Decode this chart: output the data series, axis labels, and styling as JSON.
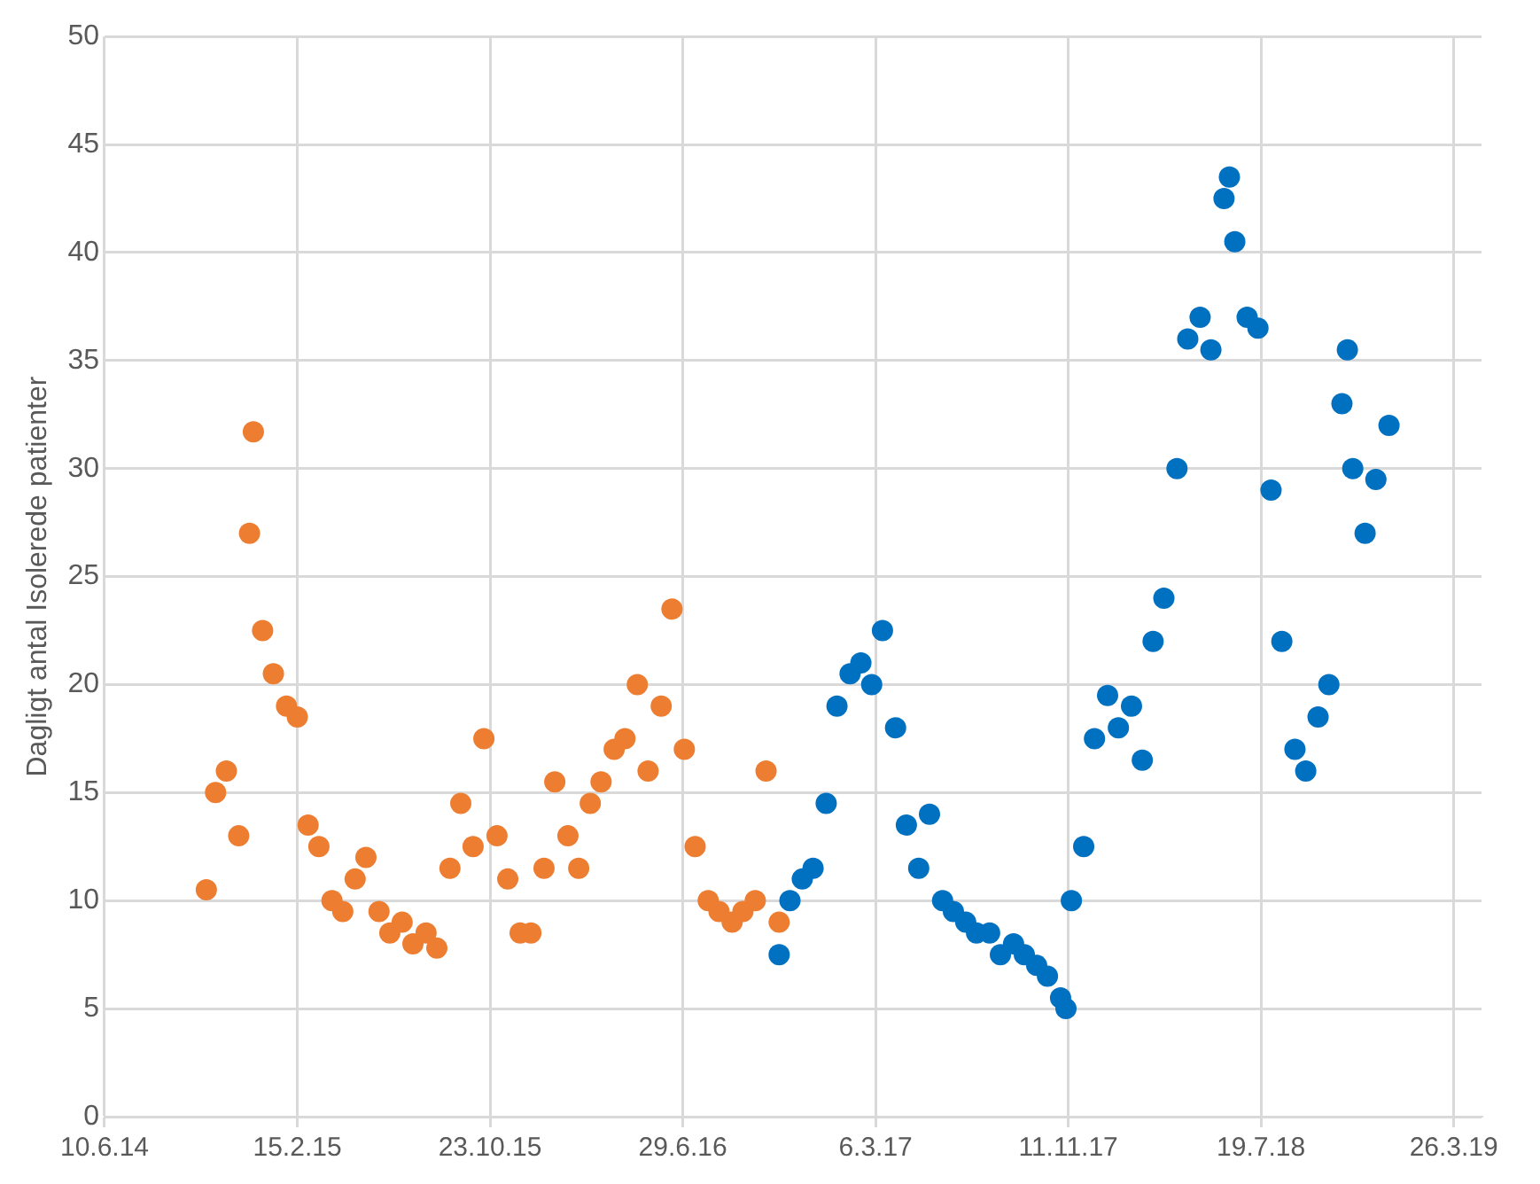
{
  "chart_data": {
    "type": "scatter",
    "ylabel": "Dagligt antal Isolerede patienter",
    "xlim": [
      "2014-06-10",
      "2019-05-01"
    ],
    "xticks": [
      {
        "value": "2014-06-10",
        "label": "10.6.14"
      },
      {
        "value": "2015-02-15",
        "label": "15.2.15"
      },
      {
        "value": "2015-10-23",
        "label": "23.10.15"
      },
      {
        "value": "2016-06-29",
        "label": "29.6.16"
      },
      {
        "value": "2017-03-06",
        "label": "6.3.17"
      },
      {
        "value": "2017-11-11",
        "label": "11.11.17"
      },
      {
        "value": "2018-07-19",
        "label": "19.7.18"
      },
      {
        "value": "2019-03-26",
        "label": "26.3.19"
      }
    ],
    "ylim": [
      0,
      50
    ],
    "yticks": [
      0,
      5,
      10,
      15,
      20,
      25,
      30,
      35,
      40,
      45,
      50
    ],
    "grid": true,
    "legend": false,
    "marker": "circle",
    "series": [
      {
        "color": "#ed7d31",
        "x": [
          "2014-10-20",
          "2014-11-01",
          "2014-11-15",
          "2014-12-01",
          "2014-12-15",
          "2014-12-20",
          "2015-01-01",
          "2015-01-15",
          "2015-02-01",
          "2015-02-15",
          "2015-03-01",
          "2015-03-15",
          "2015-04-01",
          "2015-04-15",
          "2015-05-01",
          "2015-05-15",
          "2015-06-01",
          "2015-06-15",
          "2015-07-01",
          "2015-07-15",
          "2015-08-01",
          "2015-08-15",
          "2015-09-01",
          "2015-09-15",
          "2015-10-01",
          "2015-10-15",
          "2015-11-01",
          "2015-11-15",
          "2015-12-01",
          "2015-12-15",
          "2016-01-01",
          "2016-01-15",
          "2016-02-01",
          "2016-02-15",
          "2016-03-01",
          "2016-03-15",
          "2016-04-01",
          "2016-04-15",
          "2016-05-01",
          "2016-05-15",
          "2016-06-01",
          "2016-06-15",
          "2016-07-01",
          "2016-07-15",
          "2016-08-01",
          "2016-08-15",
          "2016-09-01",
          "2016-09-15",
          "2016-10-01",
          "2016-10-15",
          "2016-11-01"
        ],
        "values": [
          10.5,
          15,
          16,
          13,
          27,
          31.7,
          22.5,
          20.5,
          19,
          18.5,
          13.5,
          12.5,
          10,
          9.5,
          11,
          12,
          9.5,
          8.5,
          9,
          8,
          8.5,
          7.8,
          11.5,
          14.5,
          12.5,
          17.5,
          13,
          11,
          8.5,
          8.5,
          11.5,
          15.5,
          13,
          11.5,
          14.5,
          15.5,
          17,
          17.5,
          20,
          16,
          19,
          23.5,
          17,
          12.5,
          10,
          9.5,
          9,
          9.5,
          10,
          16,
          9
        ]
      },
      {
        "color": "#0070c0",
        "x": [
          "2016-11-01",
          "2016-11-15",
          "2016-12-01",
          "2016-12-15",
          "2017-01-01",
          "2017-01-15",
          "2017-02-01",
          "2017-02-15",
          "2017-03-01",
          "2017-03-15",
          "2017-04-01",
          "2017-04-15",
          "2017-05-01",
          "2017-05-15",
          "2017-06-01",
          "2017-06-15",
          "2017-07-01",
          "2017-07-15",
          "2017-08-01",
          "2017-08-15",
          "2017-09-01",
          "2017-09-15",
          "2017-10-01",
          "2017-10-15",
          "2017-11-01",
          "2017-11-08",
          "2017-11-15",
          "2017-12-01",
          "2017-12-15",
          "2018-01-01",
          "2018-01-15",
          "2018-02-01",
          "2018-02-15",
          "2018-03-01",
          "2018-03-15",
          "2018-04-01",
          "2018-04-15",
          "2018-05-01",
          "2018-05-15",
          "2018-06-01",
          "2018-06-08",
          "2018-06-15",
          "2018-07-01",
          "2018-07-15",
          "2018-08-01",
          "2018-08-15",
          "2018-09-01",
          "2018-09-15",
          "2018-10-01",
          "2018-10-15",
          "2018-11-01",
          "2018-11-08",
          "2018-11-15",
          "2018-12-01",
          "2018-12-15",
          "2019-01-01"
        ],
        "values": [
          7.5,
          10,
          11,
          11.5,
          14.5,
          19,
          20.5,
          21,
          20,
          22.5,
          18,
          13.5,
          11.5,
          14,
          10,
          9.5,
          9,
          8.5,
          8.5,
          7.5,
          8,
          7.5,
          7,
          6.5,
          5.5,
          5,
          10,
          12.5,
          17.5,
          19.5,
          18,
          19,
          16.5,
          22,
          24,
          30,
          36,
          37,
          35.5,
          42.5,
          43.5,
          40.5,
          37,
          36.5,
          29,
          22,
          17,
          16,
          18.5,
          20,
          33,
          35.5,
          30,
          27,
          29.5,
          32
        ]
      }
    ]
  }
}
